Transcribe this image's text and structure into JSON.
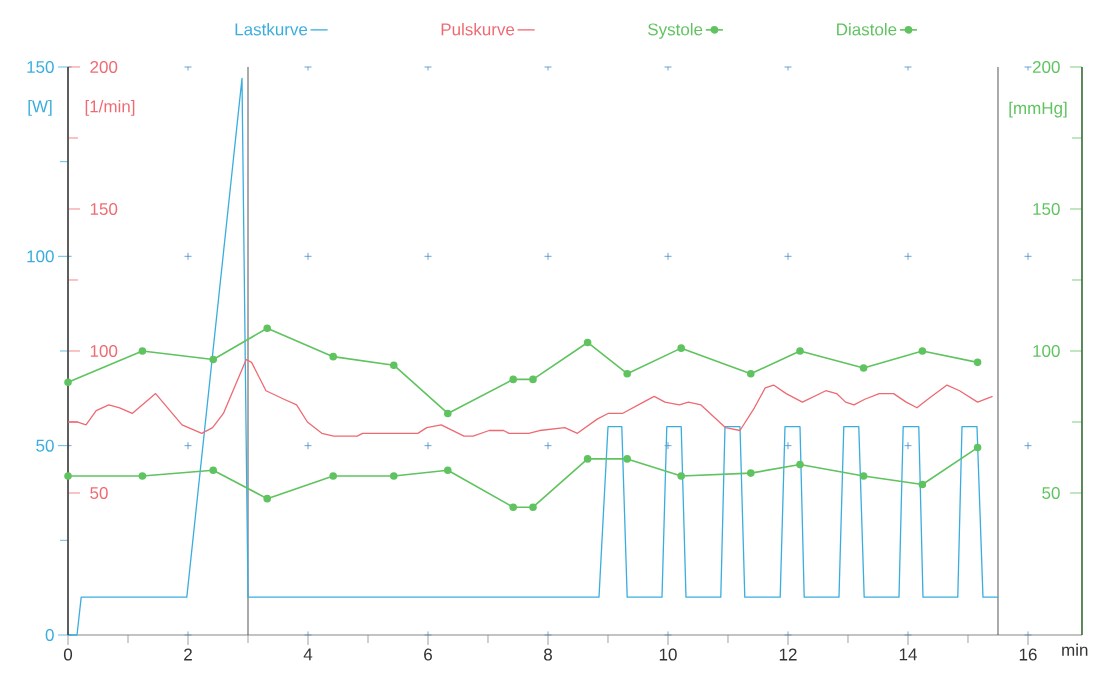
{
  "chart_data": {
    "type": "line",
    "xlabel": "min",
    "ylabel": "[W]",
    "y2label": "[1/min]",
    "y3label": "[mmHg]",
    "xlim": [
      0,
      16.9
    ],
    "xticks": [
      0,
      2,
      4,
      6,
      8,
      10,
      12,
      14,
      16
    ],
    "ylim": [
      0,
      150
    ],
    "yticks": [
      0,
      50,
      100,
      150
    ],
    "y2lim": [
      0,
      200
    ],
    "y2ticks": [
      50,
      100,
      150,
      200
    ],
    "y3lim": [
      0,
      200
    ],
    "y3ticks": [
      50,
      100,
      150,
      200
    ],
    "grid": true,
    "legend": "top",
    "ref_lines": [
      {
        "axis": "x",
        "value": 3,
        "color": "#555555"
      },
      {
        "axis": "x",
        "value": 15.5,
        "color": "#555555"
      }
    ],
    "series": [
      {
        "name": "Lastkurve",
        "color": "#3aaddf",
        "axis": "y",
        "marker": "none",
        "x": [
          0,
          0.15,
          0.22,
          1.98,
          2.9,
          3.0,
          8.85,
          9.0,
          9.23,
          9.32,
          9.9,
          9.98,
          10.22,
          10.3,
          10.88,
          10.95,
          11.2,
          11.28,
          11.87,
          11.95,
          12.2,
          12.27,
          12.85,
          12.93,
          13.18,
          13.27,
          13.85,
          13.92,
          14.18,
          14.25,
          14.83,
          14.9,
          15.15,
          15.25,
          15.5
        ],
        "values": [
          0,
          0,
          10,
          10,
          147,
          10,
          10,
          55,
          55,
          10,
          10,
          55,
          55,
          10,
          10,
          55,
          55,
          10,
          10,
          55,
          55,
          10,
          10,
          55,
          55,
          10,
          10,
          55,
          55,
          10,
          10,
          55,
          55,
          10,
          10
        ]
      },
      {
        "name": "Pulskurve",
        "color": "#ee6a72",
        "axis": "y2",
        "marker": "none",
        "x": [
          0,
          0.15,
          0.3,
          0.47,
          0.68,
          0.86,
          1.07,
          1.46,
          1.9,
          2.23,
          2.41,
          2.59,
          2.97,
          3.06,
          3.3,
          3.6,
          3.81,
          3.99,
          4.23,
          4.43,
          4.82,
          4.91,
          5.83,
          5.98,
          6.22,
          6.6,
          6.75,
          7.02,
          7.26,
          7.35,
          7.68,
          7.86,
          8.28,
          8.49,
          8.82,
          9.0,
          9.24,
          9.59,
          9.77,
          9.95,
          10.19,
          10.34,
          10.55,
          10.96,
          11.2,
          11.44,
          11.62,
          11.76,
          11.97,
          12.24,
          12.63,
          12.81,
          12.96,
          13.1,
          13.28,
          13.52,
          13.76,
          13.97,
          14.15,
          14.33,
          14.65,
          14.86,
          15.16,
          15.41
        ],
        "values": [
          75,
          75,
          74,
          79,
          81,
          80,
          78,
          85,
          74,
          71,
          73,
          78,
          97,
          96,
          86,
          83,
          81,
          75,
          71,
          70,
          70,
          71,
          71,
          73,
          74,
          70,
          70,
          72,
          72,
          71,
          71,
          72,
          73,
          71,
          76,
          78,
          78,
          82,
          84,
          82,
          81,
          82,
          81,
          73,
          72,
          80,
          87,
          88,
          85,
          82,
          86,
          85,
          82,
          81,
          83,
          85,
          85,
          82,
          80,
          83,
          88,
          86,
          82,
          84
        ]
      },
      {
        "name": "Systole",
        "color": "#5fc35f",
        "axis": "y3",
        "marker": "circle",
        "x": [
          0,
          1.24,
          2.42,
          3.32,
          4.42,
          5.43,
          6.33,
          7.42,
          7.75,
          8.66,
          9.32,
          10.22,
          11.38,
          12.2,
          13.26,
          14.24,
          15.16
        ],
        "values": [
          89,
          100,
          97,
          108,
          98,
          95,
          78,
          90,
          90,
          103,
          92,
          101,
          92,
          100,
          94,
          100,
          96
        ]
      },
      {
        "name": "Diastole",
        "color": "#5fc35f",
        "axis": "y3",
        "marker": "circle",
        "x": [
          0,
          1.24,
          2.42,
          3.32,
          4.42,
          5.43,
          6.33,
          7.42,
          7.75,
          8.66,
          9.32,
          10.22,
          11.38,
          12.2,
          13.26,
          14.24,
          15.16
        ],
        "values": [
          56,
          56,
          58,
          48,
          56,
          56,
          58,
          45,
          45,
          62,
          62,
          56,
          57,
          60,
          56,
          53,
          66
        ]
      }
    ]
  }
}
